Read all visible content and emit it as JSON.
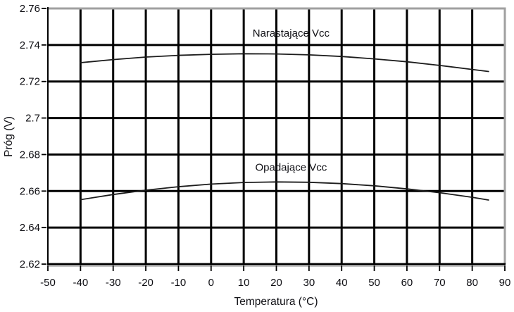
{
  "chart_data": {
    "type": "line",
    "title": "",
    "xlabel": "Temperatura (°C)",
    "ylabel": "Próg (V)",
    "xlim": [
      -50,
      90
    ],
    "ylim": [
      2.62,
      2.76
    ],
    "x_ticks": [
      -50,
      -40,
      -30,
      -20,
      -10,
      0,
      10,
      20,
      30,
      40,
      50,
      60,
      70,
      80,
      90
    ],
    "x_tick_labels": [
      "-50",
      "-40",
      "-30",
      "-20",
      "-10",
      "0",
      "10",
      "20",
      "30",
      "40",
      "50",
      "60",
      "70",
      "80",
      "90"
    ],
    "y_ticks": [
      2.62,
      2.64,
      2.66,
      2.68,
      2.7,
      2.72,
      2.74,
      2.76
    ],
    "y_tick_labels": [
      "2.62",
      "2.64",
      "2.66",
      "2.68",
      "2.7",
      "2.72",
      "2.74",
      "2.76"
    ],
    "grid": true,
    "legend_position": "inline-annotations",
    "x": [
      -40,
      -30,
      -20,
      -10,
      0,
      10,
      20,
      30,
      40,
      50,
      60,
      70,
      80,
      85
    ],
    "series": [
      {
        "name": "Narastające Vcc",
        "values": [
          2.7303,
          2.732,
          2.7334,
          2.7343,
          2.7349,
          2.7352,
          2.7351,
          2.7346,
          2.7337,
          2.7324,
          2.7308,
          2.7288,
          2.7266,
          2.7255
        ],
        "label_anchor": {
          "x": 24.5,
          "y": 2.7465
        }
      },
      {
        "name": "Opadające Vcc",
        "values": [
          2.6553,
          2.6581,
          2.6605,
          2.6624,
          2.6638,
          2.6647,
          2.665,
          2.6648,
          2.6641,
          2.6629,
          2.6612,
          2.6591,
          2.6566,
          2.6551
        ],
        "label_anchor": {
          "x": 24.5,
          "y": 2.673
        }
      }
    ],
    "colors": {
      "grid": "#000000",
      "axis": "#000000",
      "plot_border_gray": "#a0a0a0",
      "axis_shadow_gray": "#b0b0b0",
      "curve": "#1c1c1c",
      "text": "#0d0d12"
    }
  }
}
